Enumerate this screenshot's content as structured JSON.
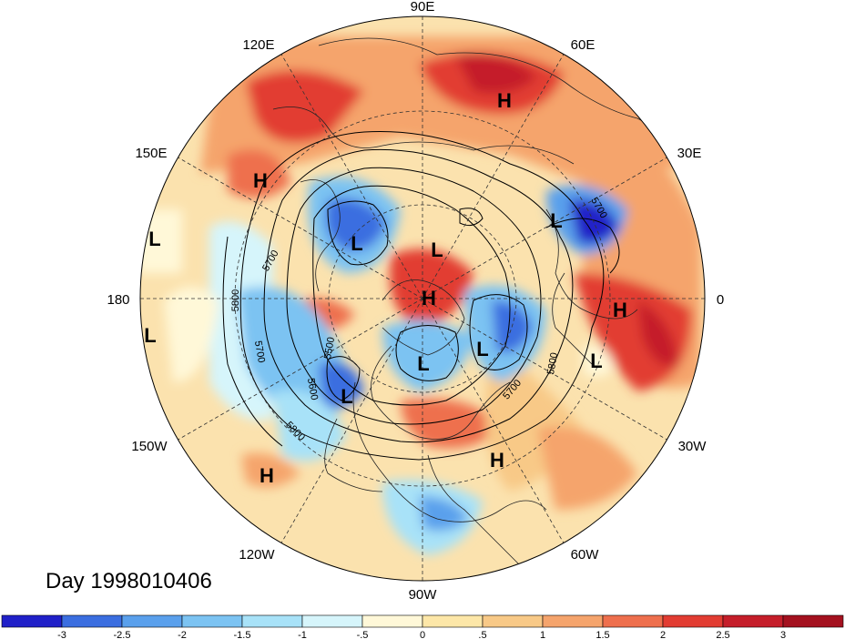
{
  "map": {
    "projection": "north-polar-stereographic",
    "title": "Day 1998010406",
    "longitude_labels": [
      {
        "id": "90e",
        "text": "90E"
      },
      {
        "id": "60e",
        "text": "60E"
      },
      {
        "id": "30e",
        "text": "30E"
      },
      {
        "id": "0",
        "text": "0"
      },
      {
        "id": "30w",
        "text": "30W"
      },
      {
        "id": "60w",
        "text": "60W"
      },
      {
        "id": "90w",
        "text": "90W"
      },
      {
        "id": "120w",
        "text": "120W"
      },
      {
        "id": "150w",
        "text": "150W"
      },
      {
        "id": "180",
        "text": "180"
      },
      {
        "id": "150e",
        "text": "150E"
      },
      {
        "id": "120e",
        "text": "120E"
      }
    ],
    "pressure_centers": [
      {
        "id": "h-siberia",
        "text": "H"
      },
      {
        "id": "h-150e",
        "text": "H"
      },
      {
        "id": "l-180a",
        "text": "L"
      },
      {
        "id": "l-180b",
        "text": "L"
      },
      {
        "id": "l-asia",
        "text": "L"
      },
      {
        "id": "l-arctic",
        "text": "L"
      },
      {
        "id": "h-pole",
        "text": "H"
      },
      {
        "id": "l-europe",
        "text": "L"
      },
      {
        "id": "h-africa",
        "text": "H"
      },
      {
        "id": "l-atlantic",
        "text": "L"
      },
      {
        "id": "l-canada",
        "text": "L"
      },
      {
        "id": "l-greenland",
        "text": "L"
      },
      {
        "id": "l-alaska",
        "text": "L"
      },
      {
        "id": "h-midatlantic",
        "text": "H"
      },
      {
        "id": "h-pacific",
        "text": "H"
      }
    ],
    "contour_labels": [
      {
        "id": "c5700-a",
        "text": "5700"
      },
      {
        "id": "c5800-a",
        "text": "5800"
      },
      {
        "id": "c5700-b",
        "text": "5700"
      },
      {
        "id": "c5500",
        "text": "5500"
      },
      {
        "id": "c5600",
        "text": "5600"
      },
      {
        "id": "c5800-b",
        "text": "5800"
      },
      {
        "id": "c5700-c",
        "text": "5700"
      },
      {
        "id": "c5800-c",
        "text": "5800"
      },
      {
        "id": "c5700-d",
        "text": "5700"
      }
    ],
    "colors": {
      "strong_negative": "#2a2bd0",
      "negative": "#4f93e8",
      "weak_negative": "#c6f0fa",
      "weak_positive": "#fde7a8",
      "positive": "#f5a46c",
      "strong_positive": "#e23c32"
    }
  },
  "colorbar": {
    "ticks": [
      "-3",
      "-2.5",
      "-2",
      "-1.5",
      "-1",
      "-.5",
      "0",
      ".5",
      "1",
      "1.5",
      "2",
      "2.5",
      "3"
    ],
    "colors": [
      "#2020c8",
      "#3b6ee0",
      "#5aa0ec",
      "#7cc3f2",
      "#a8e2f8",
      "#d6f5fb",
      "#fff8d8",
      "#fde7a8",
      "#f8c987",
      "#f5a46c",
      "#ee6f4d",
      "#e23c32",
      "#c51e2a",
      "#a4111f"
    ]
  }
}
